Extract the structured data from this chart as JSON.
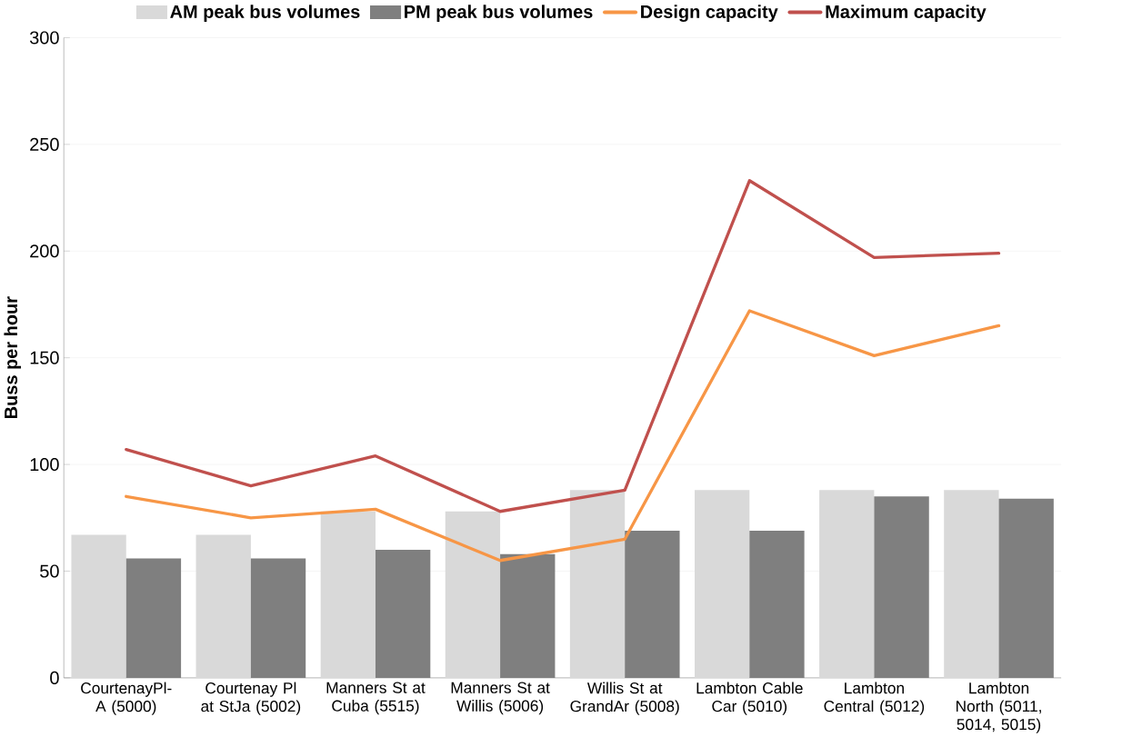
{
  "chart_data": {
    "type": "bar",
    "ylabel": "Buss per hour",
    "categories": [
      "CourtenayPl-A (5000)",
      "Courtenay Pl at StJa (5002)",
      "Manners St at Cuba (5515)",
      "Manners St at Willis (5006)",
      "Willis St at GrandAr (5008)",
      "Lambton Cable Car (5010)",
      "Lambton Central (5012)",
      "Lambton North (5011, 5014, 5015)"
    ],
    "series": [
      {
        "name": "AM peak bus volumes",
        "color": "#d9d9d9",
        "values": [
          67,
          67,
          78,
          78,
          88,
          88,
          88,
          88
        ]
      },
      {
        "name": "PM peak bus volumes",
        "color": "#7f7f7f",
        "values": [
          56,
          56,
          60,
          58,
          69,
          69,
          85,
          84
        ]
      },
      {
        "name": "Design capacity",
        "type": "line",
        "color": "#f79646",
        "values": [
          85,
          75,
          79,
          55,
          65,
          172,
          151,
          165
        ]
      },
      {
        "name": "Maximum capacity",
        "type": "line",
        "color": "#c0504d",
        "values": [
          107,
          90,
          104,
          78,
          88,
          233,
          197,
          199
        ]
      }
    ],
    "ylim": [
      0,
      300
    ],
    "yticks": [
      0,
      50,
      100,
      150,
      200,
      250,
      300
    ],
    "grid": "y",
    "legend": "top"
  }
}
